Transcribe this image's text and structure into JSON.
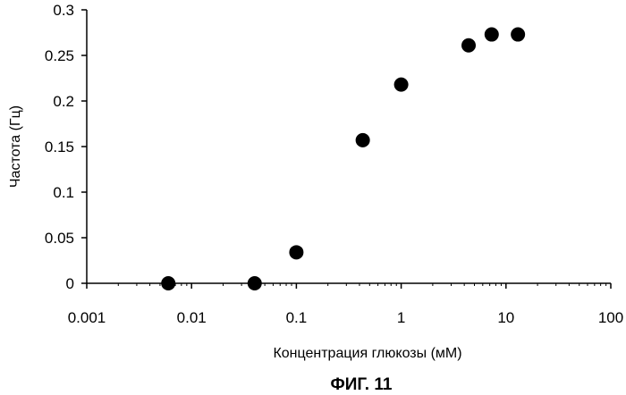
{
  "chart_data": {
    "type": "scatter",
    "xlabel": "Концентрация глюкозы (мМ)",
    "ylabel": "Частота (Гц)",
    "xscale": "log",
    "xlim": [
      0.001,
      100
    ],
    "ylim": [
      0,
      0.3
    ],
    "x_ticks": [
      0.001,
      0.01,
      0.1,
      1,
      10,
      100
    ],
    "x_tick_labels": [
      "0.001",
      "0.01",
      "0.1",
      "1",
      "10",
      "100"
    ],
    "y_ticks": [
      0,
      0.05,
      0.1,
      0.15,
      0.2,
      0.25,
      0.3
    ],
    "y_tick_labels": [
      "0",
      "0.05",
      "0.1",
      "0.15",
      "0.2",
      "0.25",
      "0.3"
    ],
    "grid": false,
    "legend": "none",
    "marker_color": "#000000",
    "points": [
      {
        "x": 0.006,
        "y": 0.0
      },
      {
        "x": 0.04,
        "y": 0.0
      },
      {
        "x": 0.1,
        "y": 0.034
      },
      {
        "x": 0.43,
        "y": 0.157
      },
      {
        "x": 1.0,
        "y": 0.218
      },
      {
        "x": 4.4,
        "y": 0.261
      },
      {
        "x": 7.3,
        "y": 0.273
      },
      {
        "x": 13.0,
        "y": 0.273
      }
    ]
  },
  "figure": {
    "caption": "ФИГ. 11"
  }
}
